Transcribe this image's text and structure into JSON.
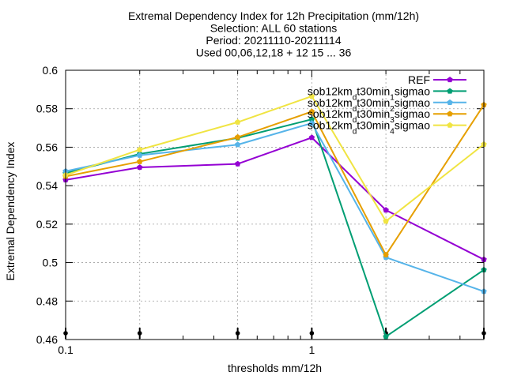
{
  "chart_data": {
    "type": "line",
    "title_lines": [
      "Extremal Dependency Index  for 12h Precipitation (mm/12h)",
      "Selection: ALL     60 stations",
      "Period: 20211110-20211114",
      "Used 00,06,12,18 + 12 15 ... 36"
    ],
    "xlabel": "thresholds mm/12h",
    "ylabel": "Extremal Dependency Index",
    "x_scale": "log",
    "xlim": [
      0.1,
      5
    ],
    "ylim": [
      0.46,
      0.6
    ],
    "x_tick_labels": [
      {
        "value": 0.1,
        "label": "0.1"
      },
      {
        "value": 1,
        "label": "1"
      }
    ],
    "y_ticks": [
      0.46,
      0.48,
      0.5,
      0.52,
      0.54,
      0.56,
      0.58,
      0.6
    ],
    "y_tick_labels": [
      "0.46",
      "0.48",
      "0.5",
      "0.52",
      "0.54",
      "0.56",
      "0.58",
      "0.6"
    ],
    "grid": true,
    "legend_position": "top-right",
    "x": [
      0.1,
      0.2,
      0.5,
      1,
      2,
      5
    ],
    "series": [
      {
        "name": "REF",
        "legend_base": "REF",
        "legend_parts": [],
        "color": "#9400d3",
        "values": [
          0.543,
          0.5495,
          0.5513,
          0.565,
          0.5273,
          0.5016
        ]
      },
      {
        "name": "sob12km_dt30min_1sigmao",
        "legend_base": "sob12km",
        "legend_parts": [
          {
            "t": "d",
            "s": "sub"
          },
          {
            "t": "t30min",
            "s": ""
          },
          {
            "t": "1",
            "s": "sub"
          },
          {
            "t": "sigmao",
            "s": ""
          }
        ],
        "color": "#009e73",
        "values": [
          0.5465,
          0.5565,
          0.5648,
          0.5745,
          0.4615,
          0.4962
        ]
      },
      {
        "name": "sob12km_dt30min_2sigmao",
        "legend_base": "sob12km",
        "legend_parts": [
          {
            "t": "d",
            "s": "sub"
          },
          {
            "t": "t30min",
            "s": ""
          },
          {
            "t": "2",
            "s": "sub"
          },
          {
            "t": "sigmao",
            "s": ""
          }
        ],
        "color": "#56b4e9",
        "values": [
          0.5475,
          0.5558,
          0.5613,
          0.5725,
          0.5027,
          0.485
        ]
      },
      {
        "name": "sob12km_dt30min_3sigmao",
        "legend_base": "sob12km",
        "legend_parts": [
          {
            "t": "d",
            "s": "sub"
          },
          {
            "t": "t30min",
            "s": ""
          },
          {
            "t": "3",
            "s": "sub"
          },
          {
            "t": "sigmao",
            "s": ""
          }
        ],
        "color": "#e69f00",
        "values": [
          0.5448,
          0.5525,
          0.5652,
          0.5785,
          0.504,
          0.582
        ]
      },
      {
        "name": "sob12km_dt30min_4sigmao",
        "legend_base": "sob12km",
        "legend_parts": [
          {
            "t": "d",
            "s": "sub"
          },
          {
            "t": "t30min",
            "s": ""
          },
          {
            "t": "4",
            "s": "sub"
          },
          {
            "t": "sigmao",
            "s": ""
          }
        ],
        "color": "#f0e442",
        "values": [
          0.5455,
          0.5587,
          0.573,
          0.5865,
          0.5215,
          0.5615
        ]
      }
    ]
  }
}
